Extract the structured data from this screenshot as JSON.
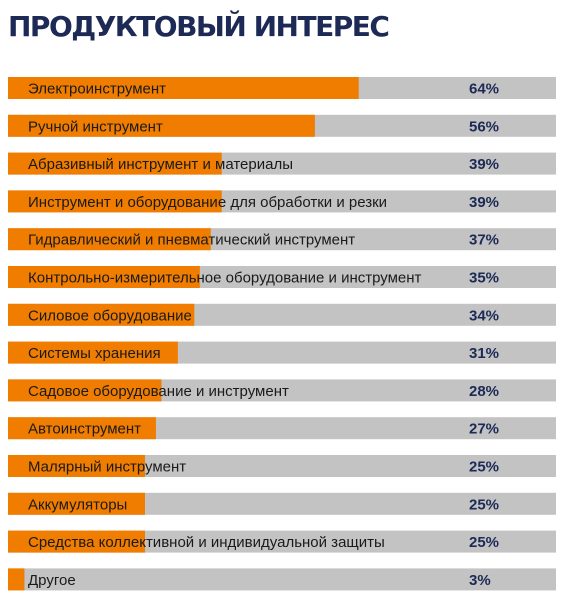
{
  "header": {
    "title": "ПРОДУКТОВЫЙ ИНТЕРЕС"
  },
  "colors": {
    "title": "#1c2a55",
    "bar_fill": "#f07d00",
    "bar_track": "#c3c3c3",
    "value_text": "#1c2a55",
    "label_text": "#1a1a1a"
  },
  "chart_data": {
    "type": "bar",
    "orientation": "horizontal",
    "title": "ПРОДУКТОВЫЙ ИНТЕРЕС",
    "xlim": [
      0,
      100
    ],
    "value_suffix": "%",
    "grid": false,
    "legend": "none",
    "categories": [
      "Электроинструмент",
      "Ручной инструмент",
      "Абразивный инструмент и материалы",
      "Инструмент и оборудование для обработки и резки",
      " Гидравлический и пневматический инструмент",
      "Контрольно-измерительное оборудование и инструмент",
      "Силовое оборудование",
      "Системы хранения",
      "Садовое оборудование и инструмент",
      "Автоинструмент",
      "Малярный инструмент",
      "Аккумуляторы",
      "Средства коллективной и индивидуальной защиты",
      "Другое"
    ],
    "values": [
      64,
      56,
      39,
      39,
      37,
      35,
      34,
      31,
      28,
      27,
      25,
      25,
      25,
      3
    ],
    "value_labels": [
      "64%",
      "56%",
      "39%",
      "39%",
      "37%",
      "35%",
      "34%",
      "31%",
      "28%",
      "27%",
      "25%",
      "25%",
      "25%",
      "3%"
    ]
  }
}
